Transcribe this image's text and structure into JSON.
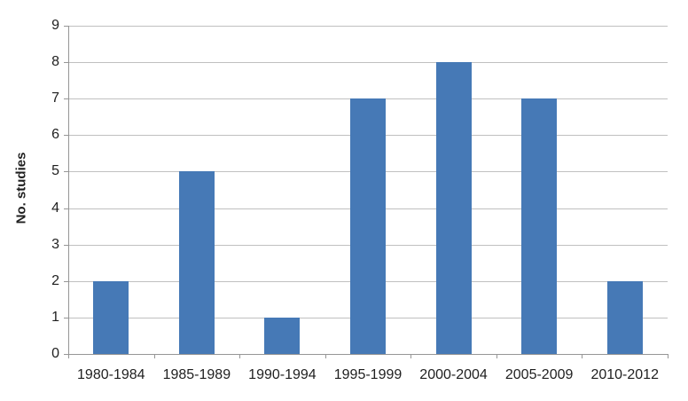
{
  "chart_data": {
    "type": "bar",
    "categories": [
      "1980-1984",
      "1985-1989",
      "1990-1994",
      "1995-1999",
      "2000-2004",
      "2005-2009",
      "2010-2012"
    ],
    "values": [
      2,
      5,
      1,
      7,
      8,
      7,
      2
    ],
    "title": "",
    "xlabel": "",
    "ylabel": "No. studies",
    "ylim": [
      0,
      9
    ],
    "yticks": [
      0,
      1,
      2,
      3,
      4,
      5,
      6,
      7,
      8,
      9
    ],
    "grid": "horizontal",
    "legend": "none",
    "colors": {
      "bar": "#4679B6",
      "gridline": "#C0C0C0",
      "axis": "#969696",
      "text": "#1F1F1F"
    }
  }
}
